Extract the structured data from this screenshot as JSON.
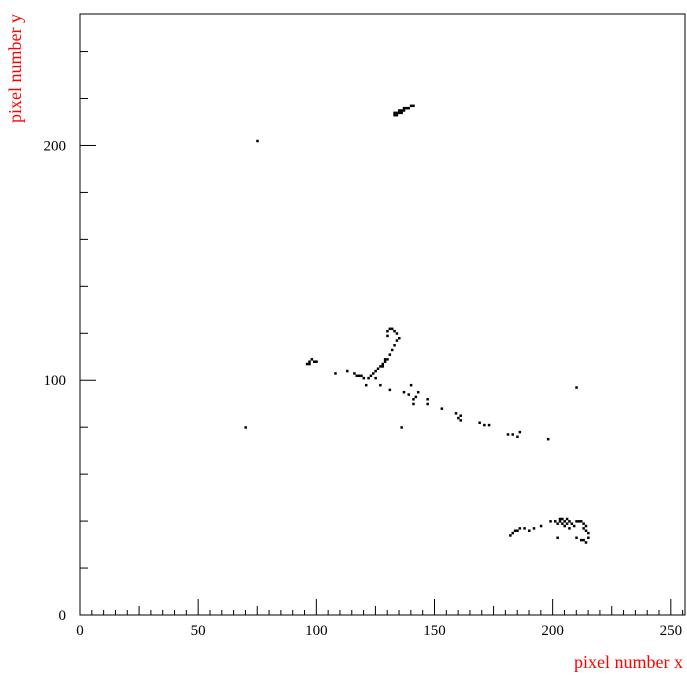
{
  "chart_data": {
    "type": "scatter",
    "xlabel": "pixel number x",
    "ylabel": "pixel number y",
    "xlim": [
      0,
      256
    ],
    "ylim": [
      0,
      256
    ],
    "x_ticks": [
      0,
      50,
      100,
      150,
      200,
      250
    ],
    "y_ticks": [
      0,
      100,
      200
    ],
    "grid": false,
    "label_color": "#ff0000",
    "marker_color": "#000000",
    "points": [
      [
        75,
        202
      ],
      [
        70,
        80
      ],
      [
        210,
        97
      ],
      [
        136,
        80
      ],
      [
        133,
        213
      ],
      [
        133,
        214
      ],
      [
        134,
        214
      ],
      [
        135,
        214
      ],
      [
        135,
        215
      ],
      [
        136,
        215
      ],
      [
        137,
        215
      ],
      [
        137,
        216
      ],
      [
        138,
        216
      ],
      [
        139,
        216
      ],
      [
        140,
        217
      ],
      [
        141,
        217
      ],
      [
        134,
        213
      ],
      [
        136,
        214
      ],
      [
        96,
        107
      ],
      [
        97,
        108
      ],
      [
        98,
        109
      ],
      [
        99,
        108
      ],
      [
        100,
        108
      ],
      [
        97,
        107
      ],
      [
        108,
        103
      ],
      [
        113,
        104
      ],
      [
        116,
        103
      ],
      [
        117,
        102
      ],
      [
        118,
        102
      ],
      [
        119,
        102
      ],
      [
        120,
        101
      ],
      [
        121,
        98
      ],
      [
        122,
        101
      ],
      [
        123,
        102
      ],
      [
        124,
        103
      ],
      [
        125,
        104
      ],
      [
        126,
        105
      ],
      [
        127,
        106
      ],
      [
        128,
        107
      ],
      [
        129,
        108
      ],
      [
        130,
        109
      ],
      [
        131,
        111
      ],
      [
        132,
        113
      ],
      [
        133,
        115
      ],
      [
        134,
        117
      ],
      [
        135,
        118
      ],
      [
        134,
        120
      ],
      [
        133,
        121
      ],
      [
        132,
        122
      ],
      [
        131,
        122
      ],
      [
        130,
        121
      ],
      [
        130,
        119
      ],
      [
        129,
        109
      ],
      [
        128,
        106
      ],
      [
        125,
        101
      ],
      [
        127,
        98
      ],
      [
        131,
        96
      ],
      [
        137,
        95
      ],
      [
        139,
        94
      ],
      [
        140,
        98
      ],
      [
        141,
        92
      ],
      [
        141,
        90
      ],
      [
        142,
        93
      ],
      [
        143,
        95
      ],
      [
        147,
        92
      ],
      [
        147,
        90
      ],
      [
        153,
        88
      ],
      [
        159,
        86
      ],
      [
        160,
        84
      ],
      [
        161,
        85
      ],
      [
        161,
        83
      ],
      [
        169,
        82
      ],
      [
        171,
        81
      ],
      [
        173,
        81
      ],
      [
        181,
        77
      ],
      [
        183,
        77
      ],
      [
        185,
        76
      ],
      [
        186,
        78
      ],
      [
        198,
        75
      ],
      [
        182,
        34
      ],
      [
        183,
        35
      ],
      [
        184,
        36
      ],
      [
        185,
        36
      ],
      [
        186,
        37
      ],
      [
        188,
        37
      ],
      [
        190,
        36
      ],
      [
        192,
        37
      ],
      [
        195,
        38
      ],
      [
        199,
        40
      ],
      [
        201,
        40
      ],
      [
        202,
        39
      ],
      [
        202,
        33
      ],
      [
        203,
        40
      ],
      [
        203,
        41
      ],
      [
        204,
        39
      ],
      [
        204,
        41
      ],
      [
        205,
        38
      ],
      [
        205,
        40
      ],
      [
        206,
        41
      ],
      [
        206,
        39
      ],
      [
        207,
        40
      ],
      [
        207,
        37
      ],
      [
        208,
        39
      ],
      [
        209,
        38
      ],
      [
        210,
        40
      ],
      [
        210,
        33
      ],
      [
        211,
        40
      ],
      [
        212,
        40
      ],
      [
        212,
        32
      ],
      [
        213,
        39
      ],
      [
        213,
        37
      ],
      [
        214,
        38
      ],
      [
        214,
        36
      ],
      [
        215,
        35
      ],
      [
        215,
        33
      ],
      [
        214,
        31
      ],
      [
        213,
        32
      ]
    ]
  }
}
